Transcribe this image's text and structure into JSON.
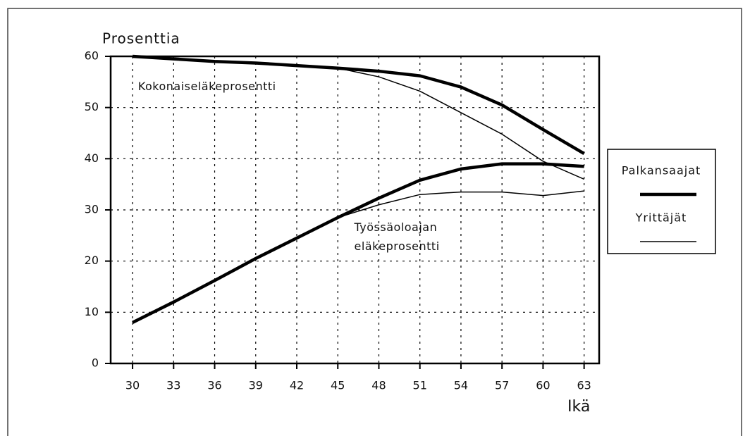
{
  "chart_data": {
    "type": "line",
    "ylabel": "Prosenttia",
    "xlabel": "Ikä",
    "x": [
      30,
      33,
      36,
      39,
      42,
      45,
      48,
      51,
      54,
      57,
      60,
      63
    ],
    "xlim": [
      28.4,
      64.1
    ],
    "xticks": [
      30,
      33,
      36,
      39,
      42,
      45,
      48,
      51,
      54,
      57,
      60,
      63
    ],
    "ylim": [
      0,
      60
    ],
    "yticks": [
      0,
      10,
      20,
      30,
      40,
      50,
      60
    ],
    "grid": true,
    "legend": "right",
    "series": [
      {
        "name": "Palkansaajat",
        "color": "#000000",
        "linewidth": 4.5,
        "lines": [
          [
            60,
            59.5,
            59,
            58.7,
            58.2,
            57.7,
            57.1,
            56.2,
            54,
            50.5,
            45.7,
            41
          ],
          [
            8,
            12,
            16.2,
            20.5,
            24.5,
            28.5,
            32.3,
            35.8,
            38,
            39,
            39,
            38.5
          ]
        ]
      },
      {
        "name": "Yrittäjät",
        "color": "#000000",
        "linewidth": 1.5,
        "lines": [
          [
            60,
            59.5,
            59,
            58.7,
            58.2,
            57.7,
            56,
            53.2,
            49,
            44.8,
            39.5,
            36
          ],
          [
            8,
            12,
            16.2,
            20.5,
            24.5,
            28.5,
            31,
            33,
            33.5,
            33.5,
            32.8,
            33.7
          ]
        ]
      }
    ],
    "annotations": [
      {
        "lines": [
          "Kokonaiseläkeprosentti"
        ],
        "x": 30.4,
        "y": 54
      },
      {
        "lines": [
          "Työssäoloajan",
          "eläkeprosentti"
        ],
        "x": 46.2,
        "y": 26.5
      }
    ]
  }
}
